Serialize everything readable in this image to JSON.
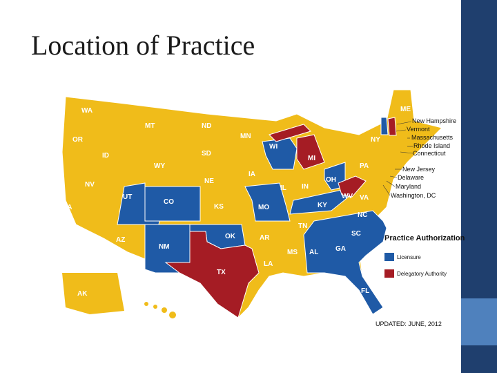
{
  "title": "Location of Practice",
  "map": {
    "states": [
      "WA",
      "OR",
      "CA",
      "ID",
      "NV",
      "MT",
      "WY",
      "UT",
      "AZ",
      "CO",
      "NM",
      "ND",
      "SD",
      "NE",
      "KS",
      "OK",
      "TX",
      "MN",
      "IA",
      "MO",
      "AR",
      "LA",
      "WI",
      "IL",
      "MI",
      "IN",
      "OH",
      "KY",
      "TN",
      "MS",
      "AL",
      "GA",
      "FL",
      "SC",
      "NC",
      "VA",
      "WV",
      "PA",
      "NY",
      "ME",
      "AK",
      "HI"
    ],
    "callouts": [
      "New Hampshire",
      "Vermont",
      "Massachusetts",
      "Rhode Island",
      "Connecticut",
      "New Jersey",
      "Delaware",
      "Maryland",
      "Washington, DC"
    ]
  },
  "legend": {
    "title": "Practice Authorization",
    "items": [
      {
        "label": "Licensure",
        "color": "#1f5aa6"
      },
      {
        "label": "Delegatory Authority",
        "color": "#a51c24"
      }
    ]
  },
  "footnote": "UPDATED: JUNE, 2012"
}
